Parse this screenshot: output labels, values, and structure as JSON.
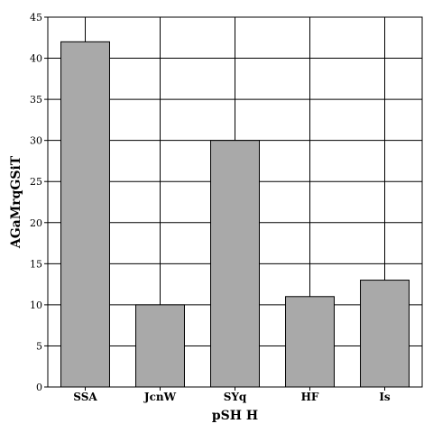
{
  "chart_data": {
    "type": "bar",
    "categories": [
      "SSA",
      "JcnW",
      "SYq",
      "HF",
      "Is"
    ],
    "values": [
      42,
      10,
      30,
      11,
      13
    ],
    "title": "",
    "xlabel": "pSH H",
    "ylabel": "AGaMrqGSiT",
    "ylim": [
      0,
      45
    ],
    "yticks": [
      0,
      5,
      10,
      15,
      20,
      25,
      30,
      35,
      40,
      45
    ],
    "grid": true,
    "bar_color": "#a9a9a9"
  }
}
